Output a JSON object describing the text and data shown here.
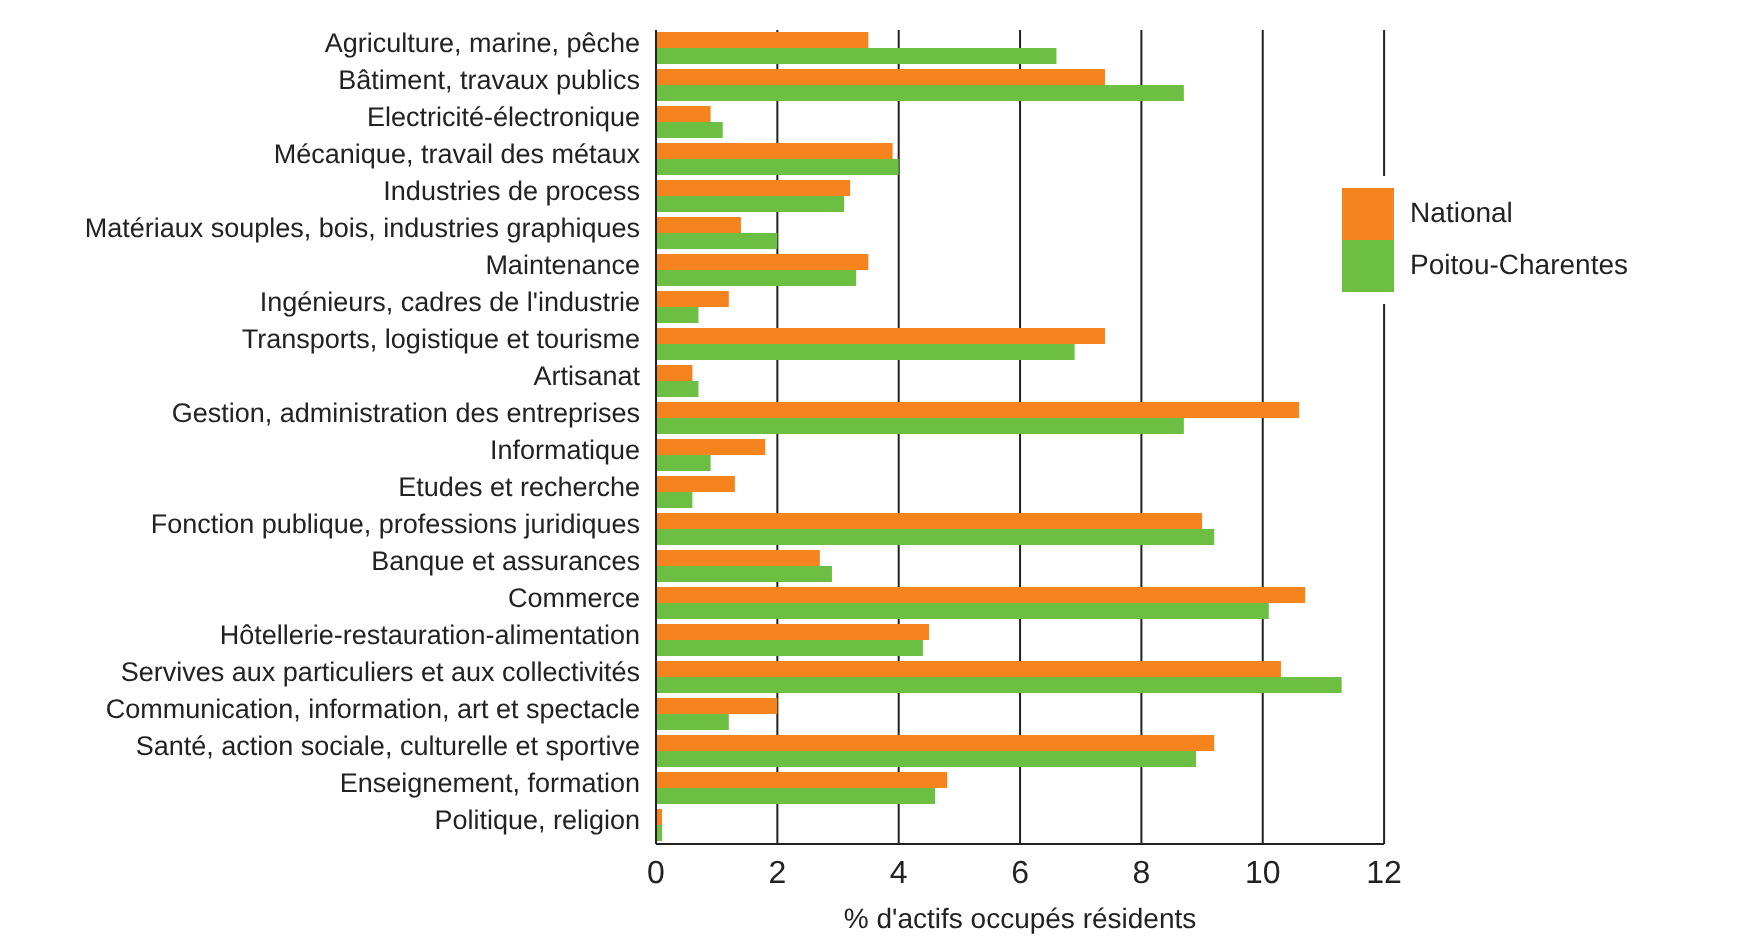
{
  "chart_data": {
    "type": "bar",
    "orientation": "horizontal",
    "xlabel": "% d'actifs occupés résidents",
    "categories": [
      "Agriculture, marine, pêche",
      "Bâtiment, travaux publics",
      "Electricité-électronique",
      "Mécanique, travail des métaux",
      "Industries de process",
      "Matériaux souples, bois, industries graphiques",
      "Maintenance",
      "Ingénieurs, cadres de l'industrie",
      "Transports, logistique et tourisme",
      "Artisanat",
      "Gestion, administration des entreprises",
      "Informatique",
      "Etudes et recherche",
      "Fonction publique, professions juridiques",
      "Banque et assurances",
      "Commerce",
      "Hôtellerie-restauration-alimentation",
      "Servives aux particuliers et aux collectivités",
      "Communication, information, art et spectacle",
      "Santé, action sociale, culturelle et sportive",
      "Enseignement, formation",
      "Politique, religion"
    ],
    "series": [
      {
        "name": "National",
        "color": "#f5841f",
        "values": [
          3.5,
          7.4,
          0.9,
          3.9,
          3.2,
          1.4,
          3.5,
          1.2,
          7.4,
          0.6,
          10.6,
          1.8,
          1.3,
          9.0,
          2.7,
          10.7,
          4.5,
          10.3,
          2.0,
          9.2,
          4.8,
          0.1
        ]
      },
      {
        "name": "Poitou-Charentes",
        "color": "#6dbf44",
        "values": [
          6.6,
          8.7,
          1.1,
          4.0,
          3.1,
          2.0,
          3.3,
          0.7,
          6.9,
          0.7,
          8.7,
          0.9,
          0.6,
          9.2,
          2.9,
          10.1,
          4.4,
          11.3,
          1.2,
          8.9,
          4.6,
          0.1
        ]
      }
    ],
    "xlim": [
      0,
      12
    ],
    "xticks": [
      0,
      2,
      4,
      6,
      8,
      10,
      12
    ],
    "grid": "x",
    "legend": "right"
  }
}
